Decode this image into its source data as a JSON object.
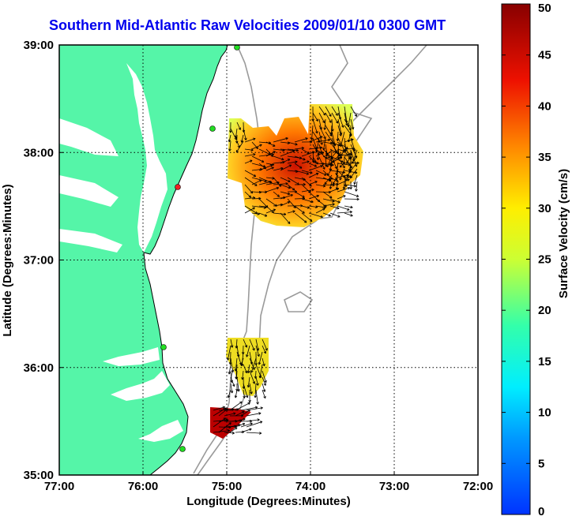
{
  "title": "Southern Mid-Atlantic Raw Velocities 2009/01/10 0300 GMT",
  "map": {
    "xlabel": "Longitude (Degrees:Minutes)",
    "ylabel": "Latitude (Degrees:Minutes)",
    "x_ticks": [
      "77:00",
      "76:00",
      "75:00",
      "74:00",
      "73:00",
      "72:00"
    ],
    "y_ticks": [
      "39:00",
      "38:00",
      "37:00",
      "36:00",
      "35:00"
    ],
    "land_color": "#55f5a8",
    "coast_color": "#000000",
    "bathy_color": "#9a9a9a",
    "station_color": "#22dd22"
  },
  "colorbar": {
    "label": "Surface Velocity (cm/s)",
    "ticks": [
      "50",
      "45",
      "40",
      "35",
      "30",
      "25",
      "20",
      "15",
      "10",
      "5",
      "0"
    ],
    "min": 0,
    "max": 50
  }
}
